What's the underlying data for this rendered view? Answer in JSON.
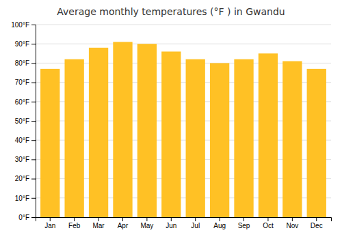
{
  "chart_data": {
    "type": "bar",
    "title": "Average monthly temperatures (°F ) in Gwandu",
    "categories": [
      "Jan",
      "Feb",
      "Mar",
      "Apr",
      "May",
      "Jun",
      "Jul",
      "Aug",
      "Sep",
      "Oct",
      "Nov",
      "Dec"
    ],
    "values": [
      77,
      82,
      88,
      91,
      90,
      86,
      82,
      80,
      82,
      85,
      81,
      77
    ],
    "color": "#FFC125",
    "ylim": [
      0,
      100
    ],
    "yticks": [
      {
        "value": 0,
        "label": "0°F"
      },
      {
        "value": 10,
        "label": "10°F"
      },
      {
        "value": 20,
        "label": "20°F"
      },
      {
        "value": 30,
        "label": "30°F"
      },
      {
        "value": 40,
        "label": "40°F"
      },
      {
        "value": 50,
        "label": "50°F"
      },
      {
        "value": 60,
        "label": "60°F"
      },
      {
        "value": 70,
        "label": "70°F"
      },
      {
        "value": 80,
        "label": "80°F"
      },
      {
        "value": 90,
        "label": "90°F"
      },
      {
        "value": 100,
        "label": "100°F"
      }
    ],
    "grid": true
  }
}
